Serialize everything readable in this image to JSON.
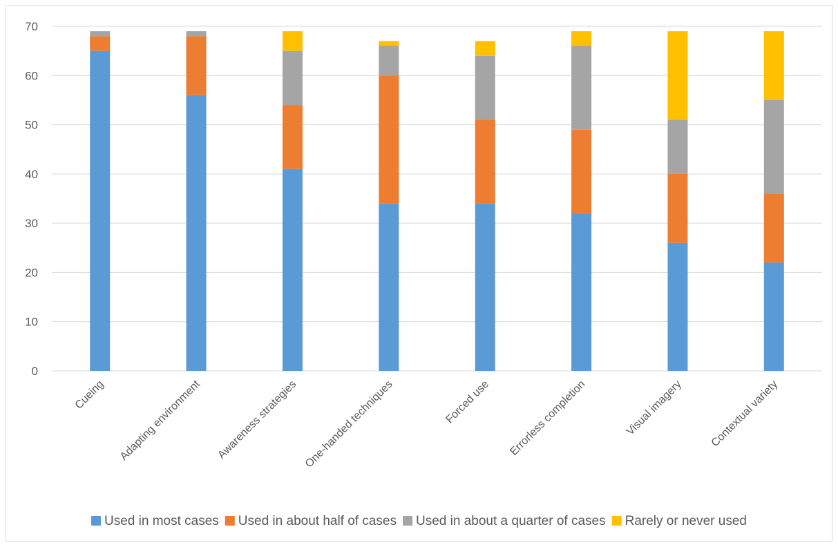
{
  "chart_data": {
    "type": "bar",
    "stacked": true,
    "title": "",
    "xlabel": "",
    "ylabel": "",
    "ylim": [
      0,
      70
    ],
    "yticks": [
      0,
      10,
      20,
      30,
      40,
      50,
      60,
      70
    ],
    "grid": true,
    "legend_position": "bottom",
    "categories": [
      "Cueing",
      "Adapting environment",
      "Awareness strategies",
      "One-handed techniques",
      "Forced use",
      "Errorless completion",
      "Visual imagery",
      "Contextual variety"
    ],
    "series": [
      {
        "name": "Used in most cases",
        "color": "#5b9bd5",
        "values": [
          65,
          56,
          41,
          34,
          34,
          32,
          26,
          22
        ]
      },
      {
        "name": "Used in about half of cases",
        "color": "#ed7d31",
        "values": [
          3,
          12,
          13,
          26,
          17,
          17,
          14,
          14
        ]
      },
      {
        "name": "Used in about a quarter of cases",
        "color": "#a5a5a5",
        "values": [
          1,
          1,
          11,
          6,
          13,
          17,
          11,
          19
        ]
      },
      {
        "name": "Rarely or never used",
        "color": "#ffc000",
        "values": [
          0,
          0,
          4,
          1,
          3,
          3,
          18,
          14
        ]
      }
    ]
  }
}
